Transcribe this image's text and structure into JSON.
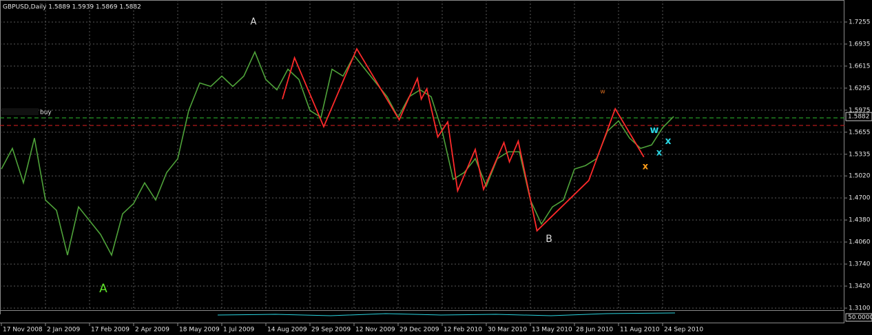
{
  "chart_data": {
    "type": "line",
    "title": "GBPUSD,Daily  1.5889 1.5939 1.5869 1.5882",
    "categories": [
      "17 Nov 2008",
      null,
      null,
      null,
      "2 Jan 2009",
      null,
      null,
      null,
      "17 Feb 2009",
      null,
      null,
      null,
      "2 Apr 2009",
      null,
      null,
      null,
      "18 May 2009",
      null,
      null,
      null,
      "1 Jul 2009",
      null,
      null,
      null,
      "14 Aug 2009",
      null,
      null,
      null,
      "29 Sep 2009",
      null,
      null,
      null,
      "12 Nov 2009",
      null,
      null,
      null,
      "29 Dec 2009",
      null,
      null,
      null,
      "12 Feb 2010",
      null,
      null,
      null,
      "30 Mar 2010",
      null,
      null,
      null,
      "13 May 2010",
      null,
      null,
      null,
      "28 Jun 2010",
      null,
      null,
      null,
      "11 Aug 2010",
      null,
      null,
      null,
      "24 Sep 2010",
      null
    ],
    "series": [
      {
        "color": "#4fa33a",
        "values": [
          1.512,
          1.542,
          1.492,
          1.557,
          1.467,
          1.452,
          1.387,
          1.457,
          1.437,
          1.417,
          1.387,
          1.447,
          1.462,
          1.492,
          1.467,
          1.507,
          1.527,
          1.597,
          1.637,
          1.632,
          1.647,
          1.632,
          1.647,
          1.682,
          1.642,
          1.627,
          1.657,
          1.642,
          1.597,
          1.587,
          1.657,
          1.647,
          1.677,
          1.657,
          1.637,
          1.617,
          1.587,
          1.617,
          1.627,
          1.617,
          1.567,
          1.497,
          1.507,
          1.527,
          1.487,
          1.527,
          1.537,
          1.537,
          1.467,
          1.432,
          1.457,
          1.467,
          1.512,
          1.517,
          1.527,
          1.567,
          1.582,
          1.557,
          1.542,
          1.547,
          1.572,
          1.5882
        ]
      }
    ],
    "zigzag": {
      "color": "#ff2a2a",
      "x": [
        25.5,
        26.6,
        29.25,
        32.25,
        36.1,
        37.75,
        38.1,
        38.6,
        39.6,
        40.5,
        41.4,
        43.0,
        43.75,
        45.6,
        46.1,
        46.9,
        48.6,
        53.3,
        55.7,
        58.3
      ],
      "values": [
        1.6135,
        1.6736,
        1.5735,
        1.6866,
        1.5835,
        1.6436,
        1.6135,
        1.6285,
        1.5585,
        1.5805,
        1.4804,
        1.5405,
        1.4824,
        1.5505,
        1.5224,
        1.5525,
        1.4223,
        1.4954,
        1.5995,
        1.5295
      ]
    },
    "levels": [
      {
        "value": 1.5863,
        "color": "#2fbf2f"
      },
      {
        "value": 1.5753,
        "color": "#e02020"
      }
    ],
    "level_label": "buy",
    "annotations": [
      {
        "text": "A",
        "color": "#dddddd"
      },
      {
        "text": "A",
        "color": "#5fe62a"
      },
      {
        "text": "B",
        "color": "#dddddd"
      },
      {
        "text": "w",
        "color": "#d2691e"
      },
      {
        "text": "x",
        "color": "#ff9d1a"
      },
      {
        "text": "w",
        "color": "#2ad4e0"
      },
      {
        "text": "x",
        "color": "#2ad4e0"
      },
      {
        "text": "x",
        "color": "#2ad4e0"
      }
    ],
    "last_price": 1.5882,
    "indicator_level": {
      "value": 50,
      "label": "50.0000"
    },
    "ylim": [
      1.307,
      1.7525
    ],
    "yticks": [
      1.7255,
      1.6935,
      1.6615,
      1.6295,
      1.5975,
      1.5655,
      1.5335,
      {
        "value": 1.502,
        "label": "1.5020"
      },
      {
        "value": 1.47,
        "label": "1.4700"
      },
      {
        "value": 1.438,
        "label": "1.4380"
      },
      {
        "value": 1.406,
        "label": "1.4060"
      },
      {
        "value": 1.374,
        "label": "1.3740"
      },
      {
        "value": 1.342,
        "label": "1.3420"
      },
      {
        "value": 1.31,
        "label": "1.3100"
      }
    ],
    "grid": true
  }
}
